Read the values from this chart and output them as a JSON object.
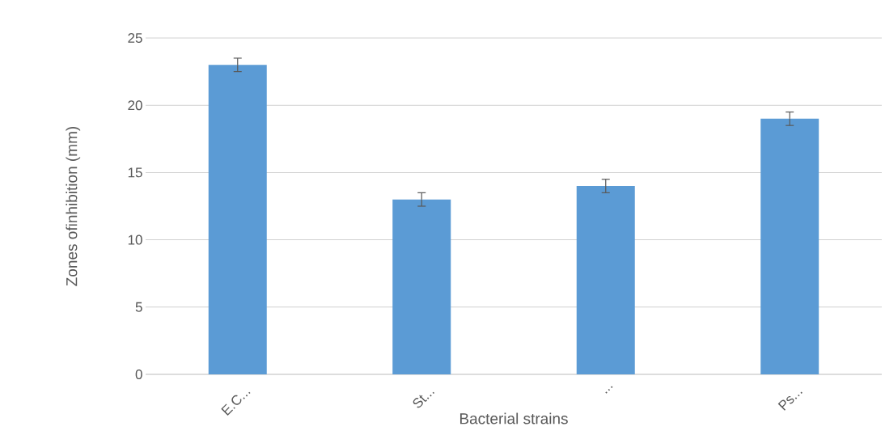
{
  "chart_data": {
    "type": "bar",
    "xlabel": "Bacterial strains",
    "ylabel": "Zones ofinhibition (mm)",
    "categories": [
      "E.C...",
      "St...",
      "...",
      "Ps..."
    ],
    "values": [
      23,
      13,
      14,
      19
    ],
    "errors": [
      0.5,
      0.5,
      0.5,
      0.5
    ],
    "color": "#5b9bd5",
    "ylim": [
      0,
      25
    ],
    "yticks": [
      0,
      5,
      10,
      15,
      20,
      25
    ],
    "grid": "y"
  }
}
